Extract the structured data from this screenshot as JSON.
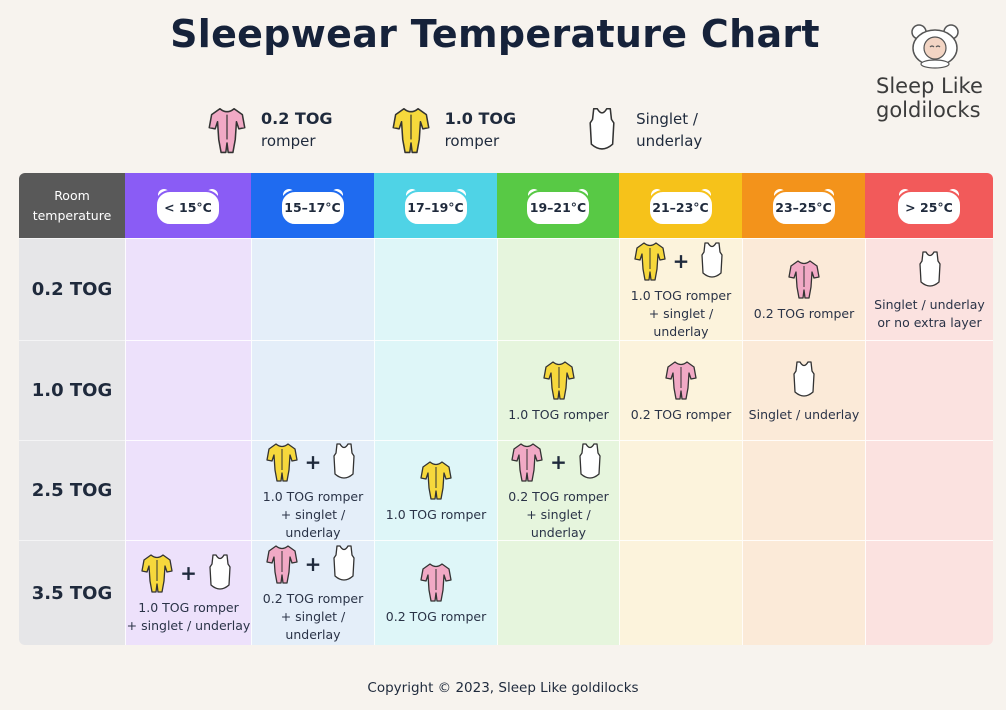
{
  "title": "Sleepwear Temperature Chart",
  "brand": {
    "line1": "Sleep Like",
    "line2": "goldilocks"
  },
  "legend": [
    {
      "icon": "pink-romper-icon",
      "bold": "0.2 TOG",
      "text": "romper"
    },
    {
      "icon": "yellow-romper-icon",
      "bold": "1.0 TOG",
      "text": "romper"
    },
    {
      "icon": "singlet-icon",
      "line1": "Singlet /",
      "line2": "underlay"
    }
  ],
  "colors": {
    "pink_romper": "#f1a9c5",
    "yellow_romper": "#f6d83c",
    "columns": [
      "#8a5cf5",
      "#1f6bf0",
      "#4fd3e6",
      "#58c945",
      "#f6c21a",
      "#f3931b",
      "#f25a5a"
    ],
    "columns_light": [
      "#ede1fb",
      "#e4eef9",
      "#def6f8",
      "#e6f5dd",
      "#fcf3dc",
      "#fbead8",
      "#fbe2e0"
    ]
  },
  "header": {
    "room_line1": "Room",
    "room_line2": "temperature",
    "temps": [
      "< 15°C",
      "15–17°C",
      "17–19°C",
      "19–21°C",
      "21–23°C",
      "23–25°C",
      "> 25°C"
    ]
  },
  "rows": [
    {
      "label": "0.2 TOG",
      "cells": [
        null,
        null,
        null,
        null,
        {
          "icons": [
            "yellow",
            "singlet"
          ],
          "line1": "1.0 TOG romper",
          "line2": "+ singlet / underlay"
        },
        {
          "icons": [
            "pink"
          ],
          "line1": "0.2 TOG romper"
        },
        {
          "icons": [
            "singlet"
          ],
          "line1": "Singlet / underlay",
          "line2": "or no extra layer"
        }
      ]
    },
    {
      "label": "1.0 TOG",
      "cells": [
        null,
        null,
        null,
        {
          "icons": [
            "yellow"
          ],
          "line1": "1.0 TOG romper"
        },
        {
          "icons": [
            "pink"
          ],
          "line1": "0.2 TOG romper"
        },
        {
          "icons": [
            "singlet"
          ],
          "line1": "Singlet / underlay"
        },
        null
      ]
    },
    {
      "label": "2.5 TOG",
      "cells": [
        null,
        {
          "icons": [
            "yellow",
            "singlet"
          ],
          "line1": "1.0 TOG romper",
          "line2": "+ singlet / underlay"
        },
        {
          "icons": [
            "yellow"
          ],
          "line1": "1.0 TOG romper"
        },
        {
          "icons": [
            "pink",
            "singlet"
          ],
          "line1": "0.2 TOG romper",
          "line2": "+ singlet / underlay"
        },
        null,
        null,
        null
      ]
    },
    {
      "label": "3.5 TOG",
      "cells": [
        {
          "icons": [
            "yellow",
            "singlet"
          ],
          "line1": "1.0 TOG romper",
          "line2": "+ singlet / underlay"
        },
        {
          "icons": [
            "pink",
            "singlet"
          ],
          "line1": "0.2 TOG romper",
          "line2": "+ singlet / underlay"
        },
        {
          "icons": [
            "pink"
          ],
          "line1": "0.2 TOG romper"
        },
        null,
        null,
        null,
        null
      ]
    }
  ],
  "plus": "+",
  "footer": "Copyright © 2023, Sleep Like goldilocks"
}
